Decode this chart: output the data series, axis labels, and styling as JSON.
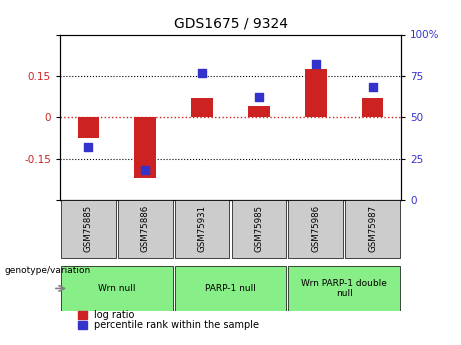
{
  "title": "GDS1675 / 9324",
  "samples": [
    "GSM75885",
    "GSM75886",
    "GSM75931",
    "GSM75985",
    "GSM75986",
    "GSM75987"
  ],
  "log_ratio": [
    -0.075,
    -0.22,
    0.07,
    0.04,
    0.175,
    0.07
  ],
  "percentile_rank": [
    32,
    18,
    77,
    62,
    82,
    68
  ],
  "ylim_left": [
    -0.3,
    0.3
  ],
  "ylim_right": [
    0,
    100
  ],
  "yticks_left": [
    -0.3,
    -0.15,
    0,
    0.15,
    0.3
  ],
  "yticks_left_labels": [
    "",
    "-0.15",
    "0",
    "0.15",
    ""
  ],
  "yticks_right": [
    0,
    25,
    50,
    75,
    100
  ],
  "yticks_right_labels": [
    "0",
    "25",
    "50",
    "75",
    "100%"
  ],
  "bar_color": "#cc2222",
  "dot_color": "#3333cc",
  "background_color": "#ffffff",
  "plot_bg": "#ffffff",
  "groups": [
    {
      "label": "Wrn null",
      "start": 0,
      "end": 2
    },
    {
      "label": "PARP-1 null",
      "start": 2,
      "end": 4
    },
    {
      "label": "Wrn PARP-1 double\nnull",
      "start": 4,
      "end": 6
    }
  ],
  "group_color": "#88ee88",
  "sample_box_color": "#cccccc",
  "legend_red_label": "log ratio",
  "legend_blue_label": "percentile rank within the sample",
  "xlabel_group": "genotype/variation",
  "title_fontsize": 10,
  "tick_fontsize": 7.5,
  "label_fontsize": 7.5
}
